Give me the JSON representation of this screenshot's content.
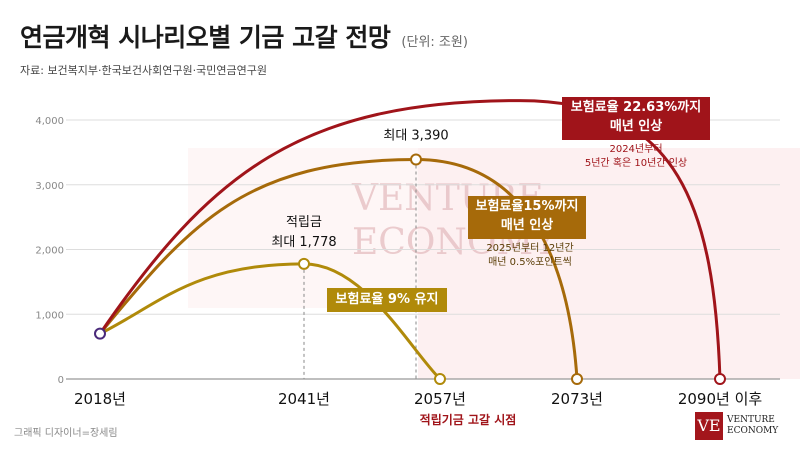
{
  "header": {
    "title": "연금개혁 시나리오별 기금 고갈 전망",
    "unit": "(단위: 조원)",
    "source": "자료: 보건복지부·한국보건사회연구원·국민연금연구원"
  },
  "footer": {
    "credit": "그래픽 디자이너=장세림",
    "logo_mark": "VE",
    "logo_line1": "VENTURE",
    "logo_line2": "ECONOMY"
  },
  "watermark": {
    "line1": "VENTURE",
    "line2": "ECONOMY"
  },
  "chart_data": {
    "type": "line",
    "title": "연금개혁 시나리오별 기금 고갈 전망",
    "ylabel": "",
    "xlabel": "적립기금 고갈 시점",
    "x_ticks": [
      "2018년",
      "2041년",
      "2057년",
      "2073년",
      "2090년 이후"
    ],
    "y_ticks": [
      "0",
      "1,000",
      "2,000",
      "3,000",
      "4,000"
    ],
    "ylim": [
      0,
      4200
    ],
    "grid": true,
    "colors": {
      "keep9": "#b08a0a",
      "to15": "#a66a0a",
      "to2263": "#a0141a",
      "shade": "#fbe4e6",
      "axis": "#999999"
    },
    "series": [
      {
        "key": "keep9",
        "points": [
          {
            "x": "2018년",
            "y": 700
          },
          {
            "x": "2041년",
            "y": 1778
          },
          {
            "x": "2057년",
            "y": 0
          }
        ],
        "callout": "보험료율 9% 유지",
        "peak_label": [
          "적립금",
          "최대 1,778"
        ]
      },
      {
        "key": "to15",
        "points": [
          {
            "x": "2018년",
            "y": 700
          },
          {
            "x": "2057년",
            "y": 3390
          },
          {
            "x": "2073년",
            "y": 0
          }
        ],
        "callout": [
          "보험료율15%까지",
          "매년 인상"
        ],
        "note": [
          "2025년부터 12년간",
          "매년 0.5%포인트씩"
        ],
        "peak_label": [
          "최대 3,390"
        ]
      },
      {
        "key": "to2263",
        "points": [
          {
            "x": "2018년",
            "y": 700
          },
          {
            "x": "2090년 이후",
            "y": 0
          }
        ],
        "peak": 4300,
        "callout": [
          "보험료율 22.63%까지",
          "매년 인상"
        ],
        "note": [
          "2024년부터",
          "5년간 혹은 10년간 인상"
        ]
      }
    ]
  }
}
